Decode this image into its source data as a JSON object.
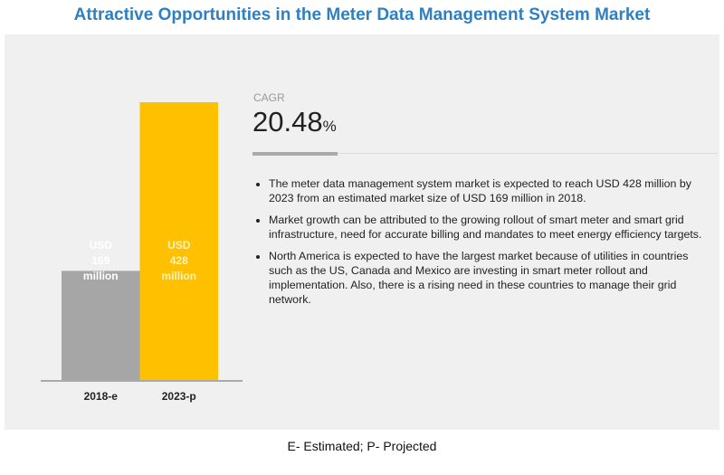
{
  "title": "Attractive Opportunities in the Meter Data Management System Market",
  "cagr": {
    "label": "CAGR",
    "value": "20.48",
    "unit": "%"
  },
  "bullets": [
    "The meter data management system market is expected to reach USD 428 million by 2023 from an estimated market size of USD 169 million in 2018.",
    "Market growth can be attributed to the growing rollout of smart meter and smart grid infrastructure, need for accurate billing and mandates to meet energy efficiency targets.",
    "North America is expected to have the largest market because of utilities in countries such as the US, Canada and Mexico are investing in smart meter rollout and implementation. Also, there is a rising need in these countries to manage their grid network."
  ],
  "footnote": "E- Estimated; P- Projected",
  "chart_data": {
    "type": "bar",
    "categories": [
      "2018-e",
      "2023-p"
    ],
    "values": [
      169,
      428
    ],
    "data_labels": [
      [
        "USD",
        "169",
        "million"
      ],
      [
        "USD",
        "428",
        "million"
      ]
    ],
    "colors": [
      "#a6a6a6",
      "#ffc000"
    ],
    "label_colors": [
      "#ffffff",
      "#fff2c0"
    ],
    "unit": "USD million"
  }
}
